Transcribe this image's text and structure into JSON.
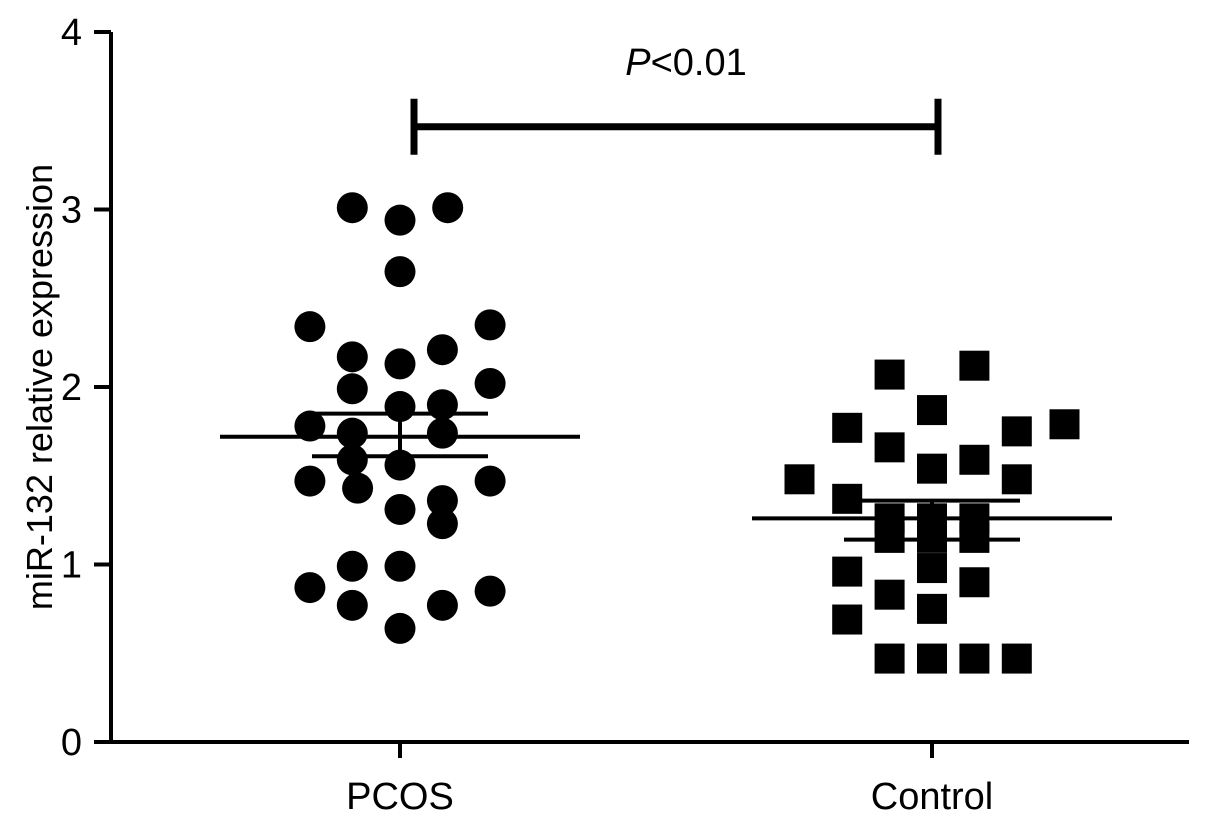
{
  "chart_data": {
    "type": "scatter",
    "title": "",
    "xlabel": "",
    "ylabel": "miR-132 relative expression",
    "ylim": [
      0,
      4
    ],
    "yticks": [
      "0",
      "1",
      "2",
      "3",
      "4"
    ],
    "categories": [
      "PCOS",
      "Control"
    ],
    "grid": false,
    "legend": "none",
    "series": [
      {
        "category": "PCOS",
        "marker": "circle",
        "mean": 1.72,
        "sem": [
          1.61,
          1.85
        ],
        "points": [
          {
            "offset": -0.09,
            "y": 3.01
          },
          {
            "offset": 0.0,
            "y": 2.94
          },
          {
            "offset": 0.09,
            "y": 3.01
          },
          {
            "offset": 0.0,
            "y": 2.65
          },
          {
            "offset": -0.17,
            "y": 2.34
          },
          {
            "offset": 0.17,
            "y": 2.35
          },
          {
            "offset": -0.09,
            "y": 2.17
          },
          {
            "offset": 0.0,
            "y": 2.13
          },
          {
            "offset": 0.08,
            "y": 2.21
          },
          {
            "offset": -0.09,
            "y": 1.99
          },
          {
            "offset": 0.17,
            "y": 2.02
          },
          {
            "offset": -0.17,
            "y": 1.78
          },
          {
            "offset": 0.0,
            "y": 1.89
          },
          {
            "offset": 0.08,
            "y": 1.9
          },
          {
            "offset": -0.09,
            "y": 1.74
          },
          {
            "offset": 0.08,
            "y": 1.74
          },
          {
            "offset": -0.09,
            "y": 1.59
          },
          {
            "offset": 0.0,
            "y": 1.56
          },
          {
            "offset": -0.17,
            "y": 1.47
          },
          {
            "offset": -0.08,
            "y": 1.43
          },
          {
            "offset": 0.17,
            "y": 1.47
          },
          {
            "offset": 0.08,
            "y": 1.36
          },
          {
            "offset": 0.0,
            "y": 1.31
          },
          {
            "offset": 0.08,
            "y": 1.23
          },
          {
            "offset": -0.09,
            "y": 0.99
          },
          {
            "offset": 0.0,
            "y": 0.99
          },
          {
            "offset": -0.17,
            "y": 0.87
          },
          {
            "offset": 0.17,
            "y": 0.85
          },
          {
            "offset": -0.09,
            "y": 0.77
          },
          {
            "offset": 0.08,
            "y": 0.77
          },
          {
            "offset": 0.0,
            "y": 0.64
          }
        ]
      },
      {
        "category": "Control",
        "marker": "square",
        "mean": 1.26,
        "sem": [
          1.14,
          1.36
        ],
        "points": [
          {
            "offset": -0.08,
            "y": 2.07
          },
          {
            "offset": 0.08,
            "y": 2.12
          },
          {
            "offset": 0.0,
            "y": 1.87
          },
          {
            "offset": -0.16,
            "y": 1.77
          },
          {
            "offset": 0.16,
            "y": 1.75
          },
          {
            "offset": 0.25,
            "y": 1.79
          },
          {
            "offset": -0.08,
            "y": 1.66
          },
          {
            "offset": 0.08,
            "y": 1.59
          },
          {
            "offset": 0.0,
            "y": 1.54
          },
          {
            "offset": -0.25,
            "y": 1.48
          },
          {
            "offset": 0.16,
            "y": 1.48
          },
          {
            "offset": -0.16,
            "y": 1.37
          },
          {
            "offset": -0.08,
            "y": 1.26
          },
          {
            "offset": 0.0,
            "y": 1.26
          },
          {
            "offset": 0.08,
            "y": 1.26
          },
          {
            "offset": -0.08,
            "y": 1.15
          },
          {
            "offset": 0.0,
            "y": 1.15
          },
          {
            "offset": 0.08,
            "y": 1.15
          },
          {
            "offset": 0.0,
            "y": 0.98
          },
          {
            "offset": -0.16,
            "y": 0.96
          },
          {
            "offset": 0.08,
            "y": 0.9
          },
          {
            "offset": -0.08,
            "y": 0.83
          },
          {
            "offset": 0.0,
            "y": 0.75
          },
          {
            "offset": -0.16,
            "y": 0.69
          },
          {
            "offset": -0.08,
            "y": 0.47
          },
          {
            "offset": 0.0,
            "y": 0.47
          },
          {
            "offset": 0.08,
            "y": 0.47
          },
          {
            "offset": 0.16,
            "y": 0.47
          }
        ]
      }
    ],
    "significance": {
      "p_italic": "P",
      "p_rest": "<0.01",
      "from": "PCOS",
      "to": "Control",
      "y": 3.5
    }
  }
}
